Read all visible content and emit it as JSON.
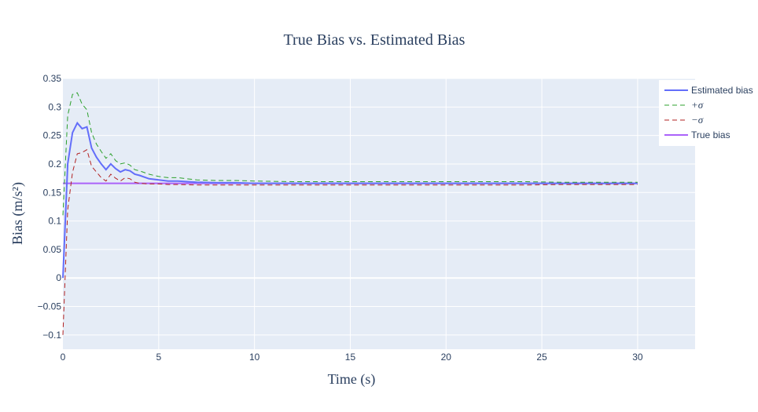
{
  "chart_data": {
    "type": "line",
    "title": "True Bias vs. Estimated Bias",
    "xlabel": "Time (s)",
    "ylabel": "Bias (m/s²)",
    "xlim": [
      0,
      33
    ],
    "ylim": [
      -0.125,
      0.35
    ],
    "x_ticks": [
      0,
      5,
      10,
      15,
      20,
      25,
      30
    ],
    "y_ticks": [
      -0.1,
      -0.05,
      0,
      0.05,
      0.1,
      0.15,
      0.2,
      0.25,
      0.3,
      0.35
    ],
    "y_tick_labels": [
      "−0.1",
      "−0.05",
      "0",
      "0.05",
      "0.1",
      "0.15",
      "0.2",
      "0.25",
      "0.3",
      "0.35"
    ],
    "grid": true,
    "legend_position": "top-right",
    "series": [
      {
        "name": "Estimated bias",
        "color": "#636efa",
        "dash": "solid",
        "x": [
          0,
          0.25,
          0.5,
          0.75,
          1,
          1.25,
          1.5,
          1.75,
          2,
          2.25,
          2.5,
          2.75,
          3,
          3.25,
          3.5,
          3.75,
          4,
          4.5,
          5,
          5.5,
          6,
          7,
          8,
          9,
          10,
          12,
          14,
          16,
          18,
          20,
          22,
          24,
          26,
          28,
          30
        ],
        "y": [
          0.0,
          0.2,
          0.255,
          0.272,
          0.262,
          0.265,
          0.228,
          0.212,
          0.2,
          0.19,
          0.2,
          0.192,
          0.186,
          0.19,
          0.188,
          0.182,
          0.18,
          0.174,
          0.172,
          0.17,
          0.17,
          0.168,
          0.167,
          0.167,
          0.166,
          0.166,
          0.166,
          0.166,
          0.166,
          0.166,
          0.166,
          0.166,
          0.166,
          0.166,
          0.166
        ]
      },
      {
        "name": "+σ",
        "color": "#2ca02c",
        "dash": "dash",
        "x": [
          0,
          0.25,
          0.5,
          0.75,
          1,
          1.25,
          1.5,
          1.75,
          2,
          2.25,
          2.5,
          2.75,
          3,
          3.25,
          3.5,
          3.75,
          4,
          4.5,
          5,
          5.5,
          6,
          7,
          8,
          9,
          10,
          12,
          14,
          16,
          18,
          20,
          22,
          24,
          26,
          28,
          30
        ],
        "y": [
          0.11,
          0.285,
          0.322,
          0.325,
          0.305,
          0.295,
          0.255,
          0.235,
          0.222,
          0.21,
          0.218,
          0.206,
          0.2,
          0.202,
          0.198,
          0.19,
          0.188,
          0.182,
          0.178,
          0.176,
          0.176,
          0.172,
          0.171,
          0.171,
          0.17,
          0.169,
          0.169,
          0.169,
          0.169,
          0.169,
          0.169,
          0.169,
          0.168,
          0.168,
          0.168
        ]
      },
      {
        "name": "−σ",
        "color": "#b22222",
        "dash": "dash",
        "x": [
          0,
          0.25,
          0.5,
          0.75,
          1,
          1.25,
          1.5,
          1.75,
          2,
          2.25,
          2.5,
          2.75,
          3,
          3.25,
          3.5,
          3.75,
          4,
          4.5,
          5,
          5.5,
          6,
          7,
          8,
          9,
          10,
          12,
          14,
          16,
          18,
          20,
          22,
          24,
          26,
          28,
          30
        ],
        "y": [
          -0.1,
          0.12,
          0.185,
          0.218,
          0.22,
          0.225,
          0.196,
          0.186,
          0.176,
          0.17,
          0.182,
          0.175,
          0.17,
          0.176,
          0.174,
          0.168,
          0.166,
          0.165,
          0.165,
          0.164,
          0.164,
          0.163,
          0.163,
          0.163,
          0.163,
          0.163,
          0.163,
          0.163,
          0.163,
          0.163,
          0.163,
          0.163,
          0.164,
          0.164,
          0.164
        ]
      },
      {
        "name": "True bias",
        "color": "#ab63fa",
        "dash": "solid",
        "x": [
          0,
          30
        ],
        "y": [
          0.166,
          0.166
        ]
      }
    ]
  }
}
